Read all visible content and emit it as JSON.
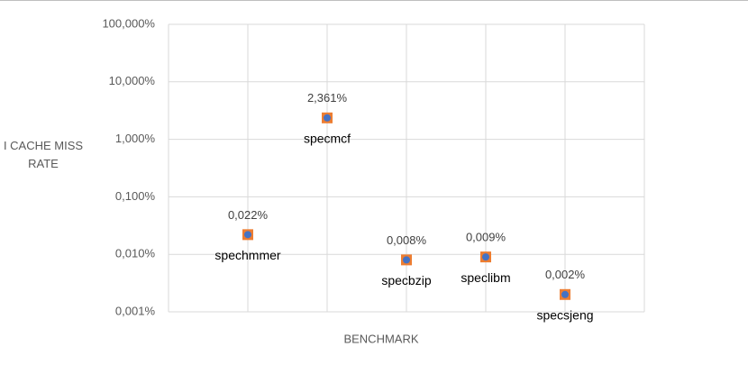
{
  "chart_data": {
    "type": "scatter",
    "x_label": "BENCHMARK",
    "y_label": "I CACHE MISS RATE",
    "categories": [
      "spechmmer",
      "specmcf",
      "specbzip",
      "speclibm",
      "specsjeng"
    ],
    "values": [
      0.022,
      2.361,
      0.008,
      0.009,
      0.002
    ],
    "value_labels": [
      "0,022%",
      "2,361%",
      "0,008%",
      "0,009%",
      "0,002%"
    ],
    "marker_color": "#ed7d31",
    "dot_color": "#4472c4",
    "log_y": true,
    "ylim": [
      0.001,
      100
    ],
    "yticks": [
      {
        "value": 0.001,
        "label": "0,001%"
      },
      {
        "value": 0.01,
        "label": "0,010%"
      },
      {
        "value": 0.1,
        "label": "0,100%"
      },
      {
        "value": 1,
        "label": "1,000%"
      },
      {
        "value": 10,
        "label": "10,000%"
      },
      {
        "value": 100,
        "label": "100,000%"
      }
    ],
    "grid": true
  }
}
